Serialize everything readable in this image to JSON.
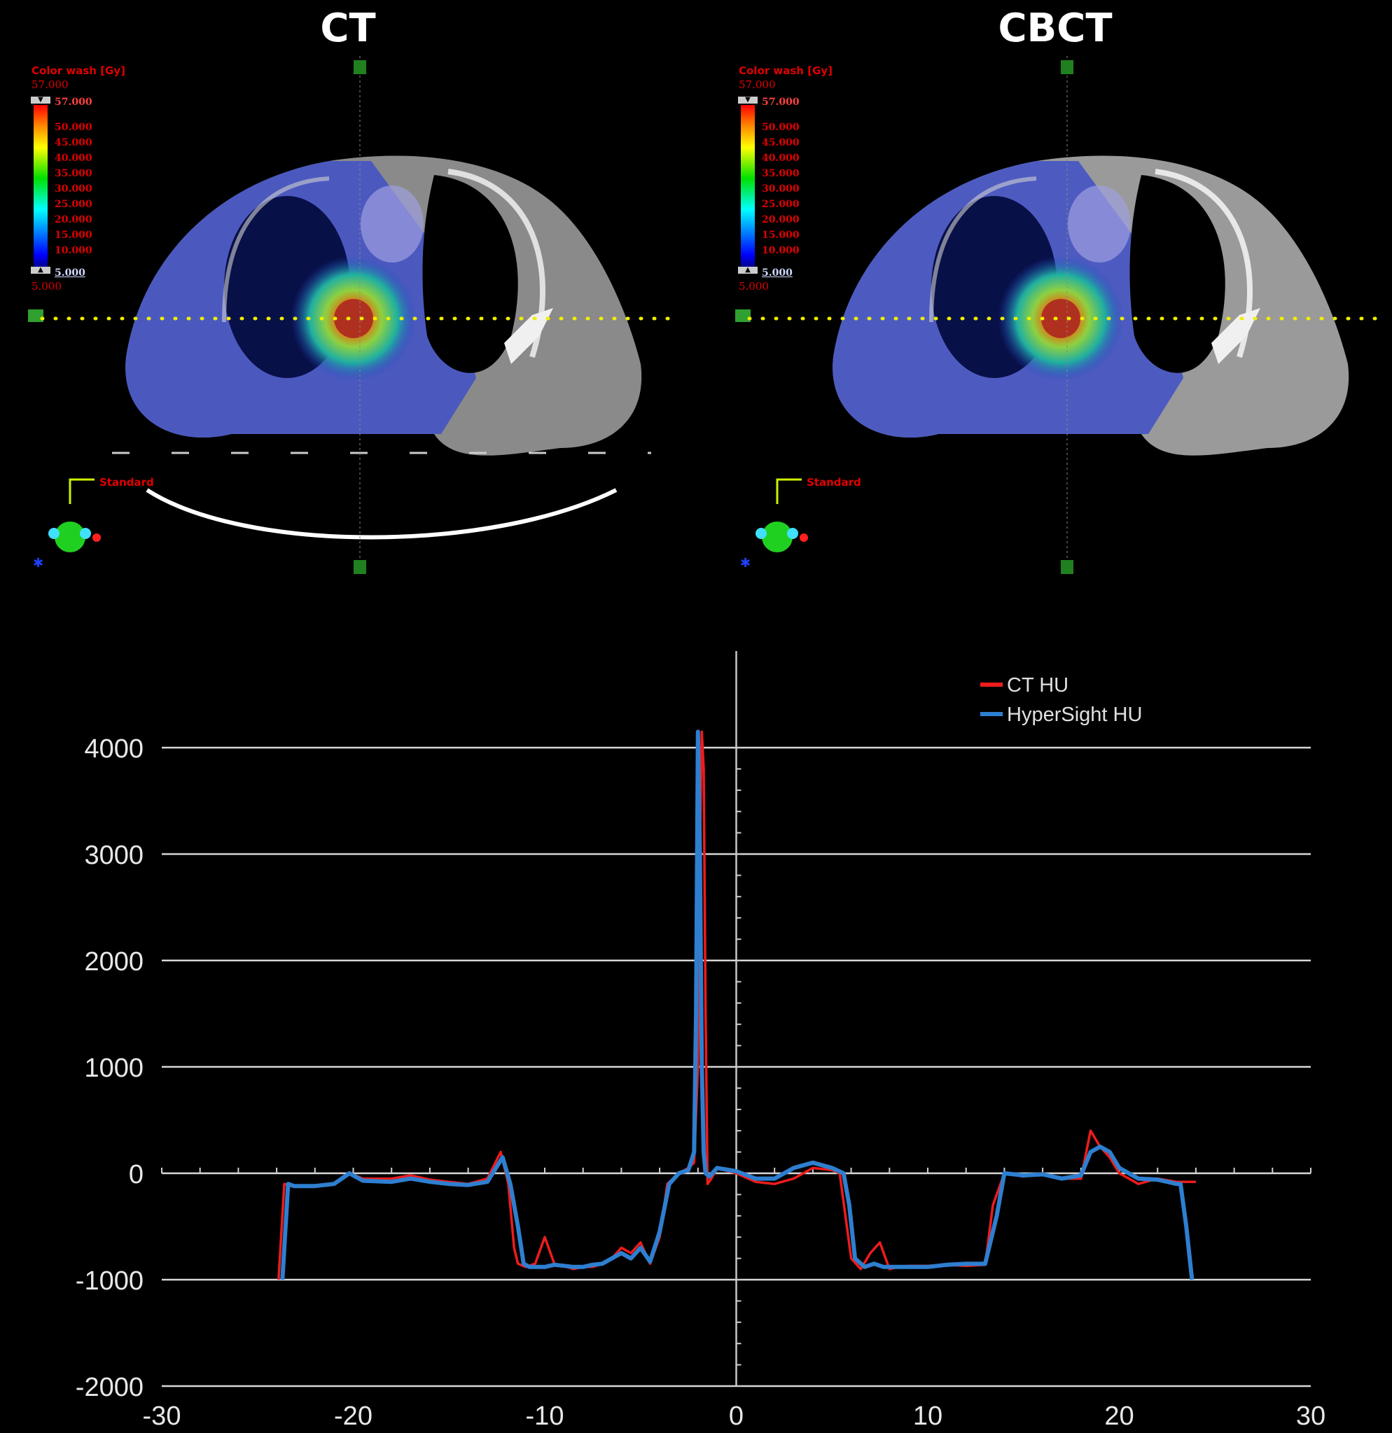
{
  "panels": [
    {
      "title": "CT",
      "colorwash_title": "Color wash [Gy]",
      "max_value": "57.000",
      "min_value": "5.000",
      "top_marker": "57.000",
      "bottom_marker": "5.000",
      "scale_ticks": [
        "50.000",
        "45.000",
        "40.000",
        "35.000",
        "30.000",
        "25.000",
        "20.000",
        "15.000",
        "10.000"
      ],
      "orientation_label": "Standard"
    },
    {
      "title": "CBCT",
      "colorwash_title": "Color wash [Gy]",
      "max_value": "57.000",
      "min_value": "5.000",
      "top_marker": "57.000",
      "bottom_marker": "5.000",
      "scale_ticks": [
        "50.000",
        "45.000",
        "40.000",
        "35.000",
        "30.000",
        "25.000",
        "20.000",
        "15.000",
        "10.000"
      ],
      "orientation_label": "Standard"
    }
  ],
  "colors": {
    "ct_series": "#ee1c1c",
    "hypersight_series": "#2e7fd0",
    "profile_line": "#f0f000"
  },
  "chart_data": {
    "type": "line",
    "xlim": [
      -30,
      30
    ],
    "ylim": [
      -2000,
      4000
    ],
    "x_ticks": [
      -30,
      -20,
      -10,
      0,
      10,
      20,
      30
    ],
    "y_ticks": [
      4000,
      3000,
      2000,
      1000,
      0,
      -1000,
      -2000
    ],
    "legend_position": "top-right",
    "grid": true,
    "series": [
      {
        "name": "CT HU",
        "x": [
          -23.9,
          -23.6,
          -23.3,
          -22,
          -21,
          -20.2,
          -19.5,
          -18,
          -17,
          -16,
          -15,
          -14,
          -13,
          -12.3,
          -11.9,
          -11.6,
          -11.4,
          -11,
          -10.5,
          -10,
          -9.5,
          -9,
          -8.5,
          -8,
          -7.5,
          -7,
          -6.5,
          -6,
          -5.5,
          -5,
          -4.5,
          -4,
          -3.6,
          -3,
          -2.5,
          -2.2,
          -2.0,
          -1.9,
          -1.8,
          -1.7,
          -1.6,
          -1.5,
          -1.3,
          -1,
          0,
          1,
          2,
          3,
          4,
          5,
          5.4,
          5.7,
          6,
          6.5,
          7,
          7.5,
          8,
          8.5,
          9,
          10,
          11,
          12,
          13,
          13.4,
          14,
          15,
          16,
          17,
          18,
          18.5,
          19,
          19.5,
          20,
          21,
          22,
          23,
          24
        ],
        "y": [
          -1000,
          -100,
          -120,
          -120,
          -100,
          0,
          -50,
          -50,
          -20,
          -60,
          -80,
          -100,
          -50,
          200,
          -100,
          -700,
          -850,
          -880,
          -850,
          -600,
          -850,
          -870,
          -900,
          -880,
          -880,
          -850,
          -800,
          -700,
          -750,
          -650,
          -850,
          -600,
          -100,
          0,
          50,
          100,
          1000,
          3000,
          4150,
          3800,
          1500,
          -100,
          -50,
          50,
          0,
          -80,
          -100,
          -50,
          50,
          30,
          0,
          -400,
          -800,
          -900,
          -750,
          -650,
          -900,
          -880,
          -870,
          -870,
          -860,
          -870,
          -860,
          -300,
          0,
          -30,
          0,
          -50,
          -50,
          400,
          250,
          150,
          0,
          -100,
          -50,
          -80,
          -80
        ]
      },
      {
        "name": "HyperSight HU",
        "x": [
          -23.7,
          -23.4,
          -23.1,
          -22,
          -21,
          -20.2,
          -19.5,
          -18,
          -17,
          -16,
          -15,
          -14,
          -13,
          -12.2,
          -11.8,
          -11.4,
          -11.1,
          -10.8,
          -10.5,
          -10,
          -9.5,
          -9,
          -8.5,
          -8,
          -7.5,
          -7,
          -6.5,
          -6,
          -5.5,
          -5,
          -4.5,
          -4,
          -3.5,
          -3,
          -2.5,
          -2.2,
          -2.1,
          -2.0,
          -1.9,
          -1.8,
          -1.7,
          -1.6,
          -1.4,
          -1,
          0,
          1,
          2,
          3,
          4,
          5,
          5.6,
          5.9,
          6.2,
          6.7,
          7.2,
          7.7,
          8,
          8.5,
          9,
          10,
          11,
          12,
          13,
          13.6,
          14,
          15,
          16,
          17,
          18,
          18.5,
          19,
          19.5,
          20,
          21,
          22,
          23,
          23.2,
          23.5,
          23.8
        ],
        "y": [
          -1000,
          -100,
          -120,
          -120,
          -100,
          0,
          -70,
          -80,
          -50,
          -80,
          -100,
          -110,
          -80,
          150,
          -100,
          -500,
          -850,
          -880,
          -880,
          -880,
          -860,
          -870,
          -880,
          -880,
          -860,
          -850,
          -800,
          -750,
          -800,
          -700,
          -830,
          -550,
          -100,
          0,
          30,
          200,
          1500,
          4150,
          3000,
          1000,
          200,
          0,
          -30,
          50,
          20,
          -50,
          -50,
          50,
          100,
          50,
          0,
          -300,
          -800,
          -880,
          -850,
          -880,
          -880,
          -880,
          -880,
          -880,
          -860,
          -850,
          -850,
          -400,
          0,
          -20,
          -10,
          -50,
          -20,
          200,
          250,
          200,
          50,
          -50,
          -60,
          -100,
          -100,
          -500,
          -1000
        ]
      }
    ]
  }
}
